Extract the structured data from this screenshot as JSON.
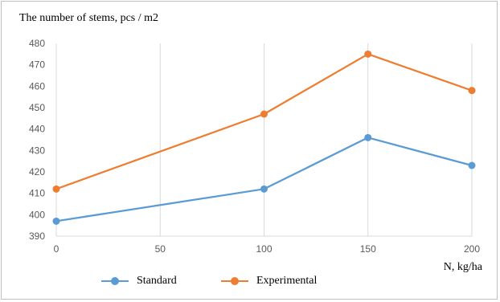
{
  "chart_data": {
    "type": "line",
    "title": "The number of  stems, pcs / m2",
    "xlabel": "N, kg/ha",
    "ylabel": "",
    "x": [
      0,
      100,
      150,
      200
    ],
    "x_ticks": [
      "0",
      "50",
      "100",
      "150",
      "200"
    ],
    "y_ticks": [
      "390",
      "400",
      "410",
      "420",
      "430",
      "440",
      "450",
      "460",
      "470",
      "480"
    ],
    "xlim": [
      0,
      200
    ],
    "ylim": [
      390,
      480
    ],
    "grid": "vertical",
    "legend_position": "bottom",
    "series": [
      {
        "name": "Standard",
        "color": "#5b9bd5",
        "values": [
          397,
          412,
          436,
          423
        ]
      },
      {
        "name": "Experimental",
        "color": "#ed7d31",
        "values": [
          412,
          447,
          475,
          458
        ]
      }
    ]
  }
}
